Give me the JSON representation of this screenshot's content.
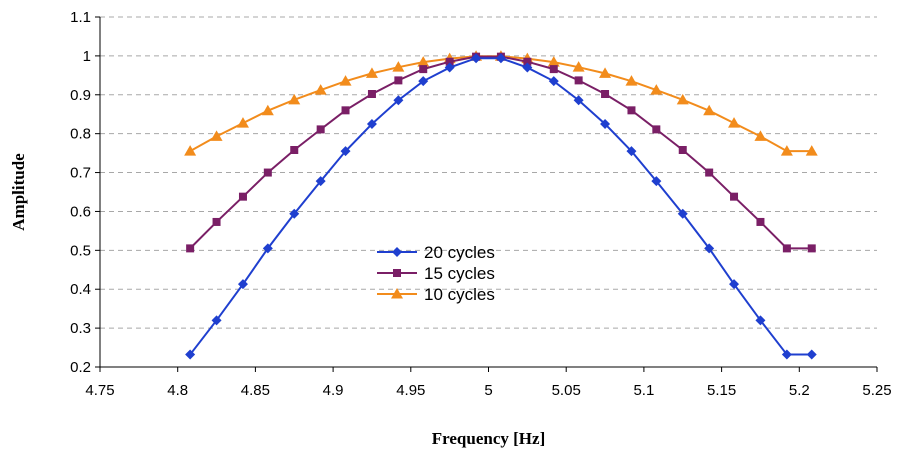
{
  "chart_data": {
    "type": "line",
    "title": "",
    "xlabel": "Frequency [Hz]",
    "ylabel": "Amplitude",
    "xlim": [
      4.75,
      5.25
    ],
    "ylim": [
      0.2,
      1.1
    ],
    "x_ticks": [
      "4.75",
      "4.8",
      "4.85",
      "4.9",
      "4.95",
      "5",
      "5.05",
      "5.1",
      "5.15",
      "5.2",
      "5.25"
    ],
    "y_ticks": [
      "0.2",
      "0.3",
      "0.4",
      "0.5",
      "0.6",
      "0.7",
      "0.8",
      "0.9",
      "1",
      "1.1"
    ],
    "grid": "horizontal dashed",
    "legend_position": "center-left",
    "x": [
      4.808,
      4.825,
      4.842,
      4.858,
      4.875,
      4.892,
      4.908,
      4.925,
      4.942,
      4.958,
      4.975,
      4.992,
      5.008,
      5.025,
      5.042,
      5.058,
      5.075,
      5.092,
      5.108,
      5.125,
      5.142,
      5.158,
      5.175,
      5.192,
      5.208
    ],
    "series": [
      {
        "name": "20 cycles",
        "color": "#1f3fcf",
        "marker": "diamond",
        "values": [
          0.232,
          0.32,
          0.413,
          0.505,
          0.594,
          0.678,
          0.755,
          0.825,
          0.886,
          0.935,
          0.97,
          0.994,
          0.994,
          0.97,
          0.935,
          0.886,
          0.825,
          0.755,
          0.678,
          0.594,
          0.505,
          0.413,
          0.32,
          0.232,
          0.232
        ]
      },
      {
        "name": "15 cycles",
        "color": "#7a1f66",
        "marker": "square",
        "values": [
          0.505,
          0.573,
          0.638,
          0.7,
          0.758,
          0.811,
          0.86,
          0.902,
          0.937,
          0.966,
          0.985,
          0.998,
          0.998,
          0.985,
          0.966,
          0.937,
          0.902,
          0.86,
          0.811,
          0.758,
          0.7,
          0.638,
          0.573,
          0.505,
          0.505
        ]
      },
      {
        "name": "10 cycles",
        "color": "#f28c1c",
        "marker": "triangle",
        "values": [
          0.755,
          0.793,
          0.827,
          0.859,
          0.887,
          0.912,
          0.935,
          0.955,
          0.971,
          0.984,
          0.993,
          0.999,
          0.999,
          0.993,
          0.984,
          0.971,
          0.955,
          0.935,
          0.912,
          0.887,
          0.859,
          0.827,
          0.793,
          0.755,
          0.755
        ]
      }
    ]
  }
}
